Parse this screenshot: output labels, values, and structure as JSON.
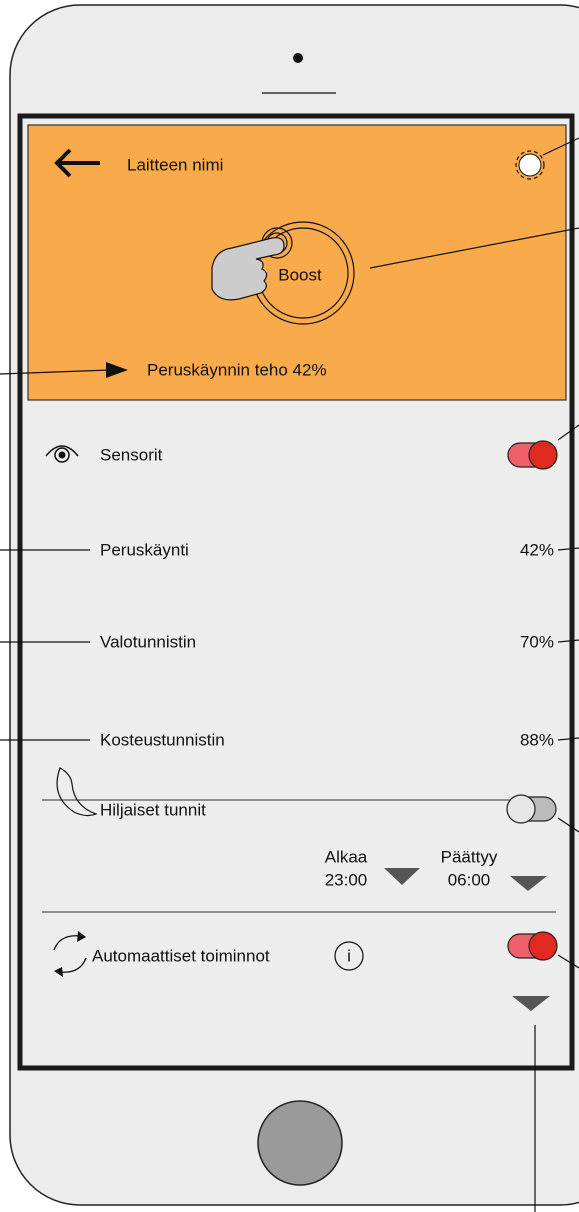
{
  "header": {
    "title": "Laitteen nimi",
    "boost": "Boost",
    "base_power": "Peruskäynnin teho 42%"
  },
  "sensors": {
    "label": "Sensorit",
    "on": true,
    "rows": [
      {
        "label": "Peruskäynti",
        "value": "42%"
      },
      {
        "label": "Valotunnistin",
        "value": "70%"
      },
      {
        "label": "Kosteustunnistin",
        "value": "88%"
      }
    ]
  },
  "quiet_hours": {
    "label": "Hiljaiset tunnit",
    "on": false,
    "start_label": "Alkaa",
    "start": "23:00",
    "end_label": "Päättyy",
    "end": "06:00"
  },
  "automation": {
    "label": "Automaattiset toiminnot",
    "info": "i",
    "on": true
  }
}
